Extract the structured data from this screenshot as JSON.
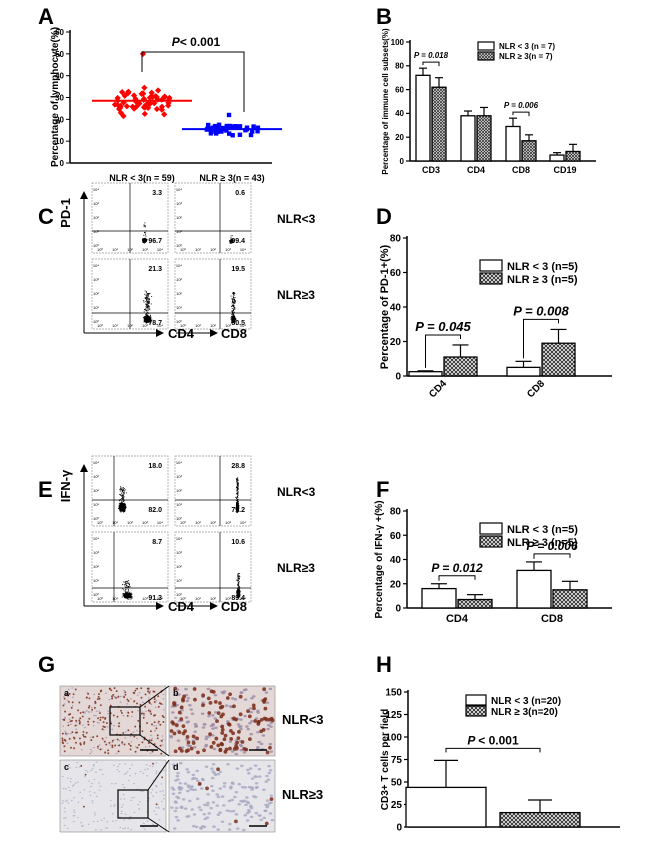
{
  "panel_labels": [
    "A",
    "B",
    "C",
    "D",
    "E",
    "F",
    "G",
    "H"
  ],
  "hatch_color": "#444444",
  "colors": {
    "red": "#ff0000",
    "blue": "#0000ff",
    "black": "#000000"
  },
  "chart_data": [
    {
      "id": "A",
      "type": "scatter",
      "ylabel": "Percentage of lymphocyte(%)",
      "ylim": [
        0,
        60
      ],
      "yticks": [
        0,
        10,
        20,
        30,
        40,
        50,
        60
      ],
      "groups": [
        {
          "label": "NLR < 3(n = 59)",
          "n": 59,
          "mean": 28.5,
          "min": 19,
          "max": 50,
          "color": "#ff0000"
        },
        {
          "label": "NLR ≥ 3(n = 43)",
          "n": 43,
          "mean": 15.5,
          "min": 6,
          "max": 22,
          "color": "#0000ff"
        }
      ],
      "pvalue_prefix": "P",
      "pvalue_text": "< 0.001"
    },
    {
      "id": "B",
      "type": "bar",
      "ylabel": "Percentage of immune cell subsets(%)",
      "ylim": [
        0,
        100
      ],
      "yticks": [
        0,
        20,
        40,
        60,
        80,
        100
      ],
      "categories": [
        "CD3",
        "CD4",
        "CD8",
        "CD19"
      ],
      "series": [
        {
          "name": "NLR < 3 (n = 7)",
          "values": [
            72,
            38,
            29,
            5
          ],
          "errors": [
            6,
            4,
            7,
            2
          ]
        },
        {
          "name": "NLR ≥ 3(n = 7)",
          "values": [
            62,
            38,
            17,
            8
          ],
          "errors": [
            8,
            7,
            5,
            6
          ]
        }
      ],
      "annotations": [
        {
          "category": 0,
          "text": "P = 0.018"
        },
        {
          "category": 2,
          "text": "P = 0.006"
        }
      ]
    },
    {
      "id": "D",
      "type": "bar",
      "ylabel": "Percentage of PD-1+(%)",
      "ylim": [
        0,
        80
      ],
      "yticks": [
        0,
        20,
        40,
        60,
        80
      ],
      "categories": [
        "CD4",
        "CD8"
      ],
      "series": [
        {
          "name": "NLR < 3",
          "name_suffix": "(n=5)",
          "values": [
            2.5,
            5
          ],
          "errors": [
            0.5,
            3.5
          ]
        },
        {
          "name": "NLR ≥ 3",
          "name_suffix": "(n=5)",
          "values": [
            11,
            19
          ],
          "errors": [
            7,
            8
          ]
        }
      ],
      "annotations": [
        {
          "category": 0,
          "text": "P = 0.045"
        },
        {
          "category": 1,
          "text": "P = 0.008"
        }
      ]
    },
    {
      "id": "F",
      "type": "bar",
      "ylabel": "Percentage of IFN-γ +(%)",
      "ylim": [
        0,
        80
      ],
      "yticks": [
        0,
        20,
        40,
        60,
        80
      ],
      "categories": [
        "CD4",
        "CD8"
      ],
      "series": [
        {
          "name": "NLR < 3",
          "name_suffix": "(n=5)",
          "values": [
            16,
            31
          ],
          "errors": [
            4,
            7
          ]
        },
        {
          "name": "NLR ≥ 3",
          "name_suffix": "(n=5)",
          "values": [
            7,
            15
          ],
          "errors": [
            4,
            7
          ]
        }
      ],
      "annotations": [
        {
          "category": 0,
          "text": "P = 0.012"
        },
        {
          "category": 1,
          "text": "P = 0.006"
        }
      ]
    },
    {
      "id": "H",
      "type": "bar",
      "ylabel": "CD3+ T cells per field",
      "ylim": [
        0,
        150
      ],
      "yticks": [
        0,
        25,
        50,
        75,
        100,
        125,
        150
      ],
      "categories": [
        ""
      ],
      "series": [
        {
          "name": "NLR < 3 (n=20)",
          "values": [
            44
          ],
          "errors": [
            30
          ]
        },
        {
          "name": "NLR ≥ 3(n=20)",
          "values": [
            16
          ],
          "errors": [
            14
          ]
        }
      ],
      "annotations": [
        {
          "category": 0,
          "text": "< 0.001",
          "prefix": "P"
        }
      ]
    }
  ],
  "flow_C": {
    "ylabel": "PD-1",
    "xlabels": [
      "CD4",
      "CD8"
    ],
    "row_labels": [
      "NLR<3",
      "NLR≥3"
    ],
    "quadrants": [
      {
        "upper": "3.3",
        "lower": "96.7"
      },
      {
        "upper": "0.6",
        "lower": "99.4"
      },
      {
        "upper": "21.3",
        "lower": "78.7"
      },
      {
        "upper": "19.5",
        "lower": "80.5"
      }
    ]
  },
  "flow_E": {
    "ylabel": "IFN-γ",
    "xlabels": [
      "CD4",
      "CD8"
    ],
    "row_labels": [
      "NLR<3",
      "NLR≥3"
    ],
    "quadrants": [
      {
        "upper": "18.0",
        "lower": "82.0"
      },
      {
        "upper": "28.8",
        "lower": "71.2"
      },
      {
        "upper": "8.7",
        "lower": "91.3"
      },
      {
        "upper": "10.6",
        "lower": "89.4"
      }
    ]
  },
  "ihc_G": {
    "row_labels": [
      "NLR<3",
      "NLR≥3"
    ],
    "sublabels": [
      "a",
      "b",
      "c",
      "d"
    ]
  },
  "flow_ticks": [
    "10⁰",
    "10¹",
    "10²",
    "10³",
    "10⁴"
  ]
}
